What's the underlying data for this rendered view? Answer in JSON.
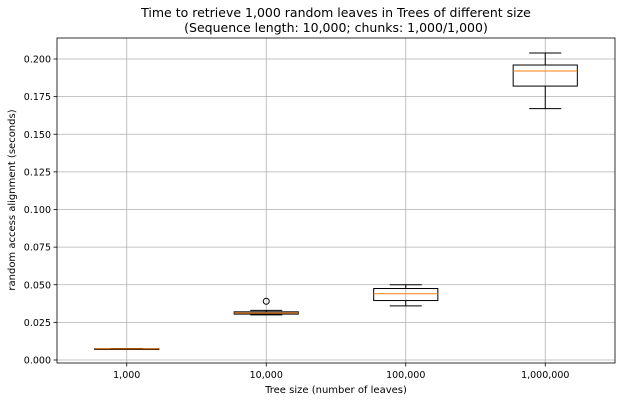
{
  "chart_data": {
    "type": "box",
    "title": "Time to retrieve 1,000 random leaves in Trees of different size",
    "subtitle": "(Sequence length: 10,000; chunks: 1,000/1,000)",
    "xlabel": "Tree size (number of leaves)",
    "ylabel": "random access alignment (seconds)",
    "ylim": [
      -0.003,
      0.213
    ],
    "yticks": [
      0.0,
      0.025,
      0.05,
      0.075,
      0.1,
      0.125,
      0.15,
      0.175,
      0.2
    ],
    "ytick_labels": [
      "0.000",
      "0.025",
      "0.050",
      "0.075",
      "0.100",
      "0.125",
      "0.150",
      "0.175",
      "0.200"
    ],
    "grid": true,
    "categories": [
      "1,000",
      "10,000",
      "100,000",
      "1,000,000"
    ],
    "boxes": [
      {
        "whisker_low": 0.0072,
        "q1": 0.0073,
        "median": 0.0074,
        "q3": 0.0075,
        "whisker_high": 0.0076,
        "fliers": []
      },
      {
        "whisker_low": 0.03,
        "q1": 0.0305,
        "median": 0.0312,
        "q3": 0.032,
        "whisker_high": 0.033,
        "fliers": [
          0.039
        ]
      },
      {
        "whisker_low": 0.036,
        "q1": 0.0395,
        "median": 0.044,
        "q3": 0.0475,
        "whisker_high": 0.05,
        "fliers": []
      },
      {
        "whisker_low": 0.167,
        "q1": 0.182,
        "median": 0.192,
        "q3": 0.196,
        "whisker_high": 0.204,
        "fliers": []
      }
    ],
    "colors": {
      "box": "#000000",
      "median": "#ff7f0e",
      "grid": "#b0b0b0"
    }
  }
}
